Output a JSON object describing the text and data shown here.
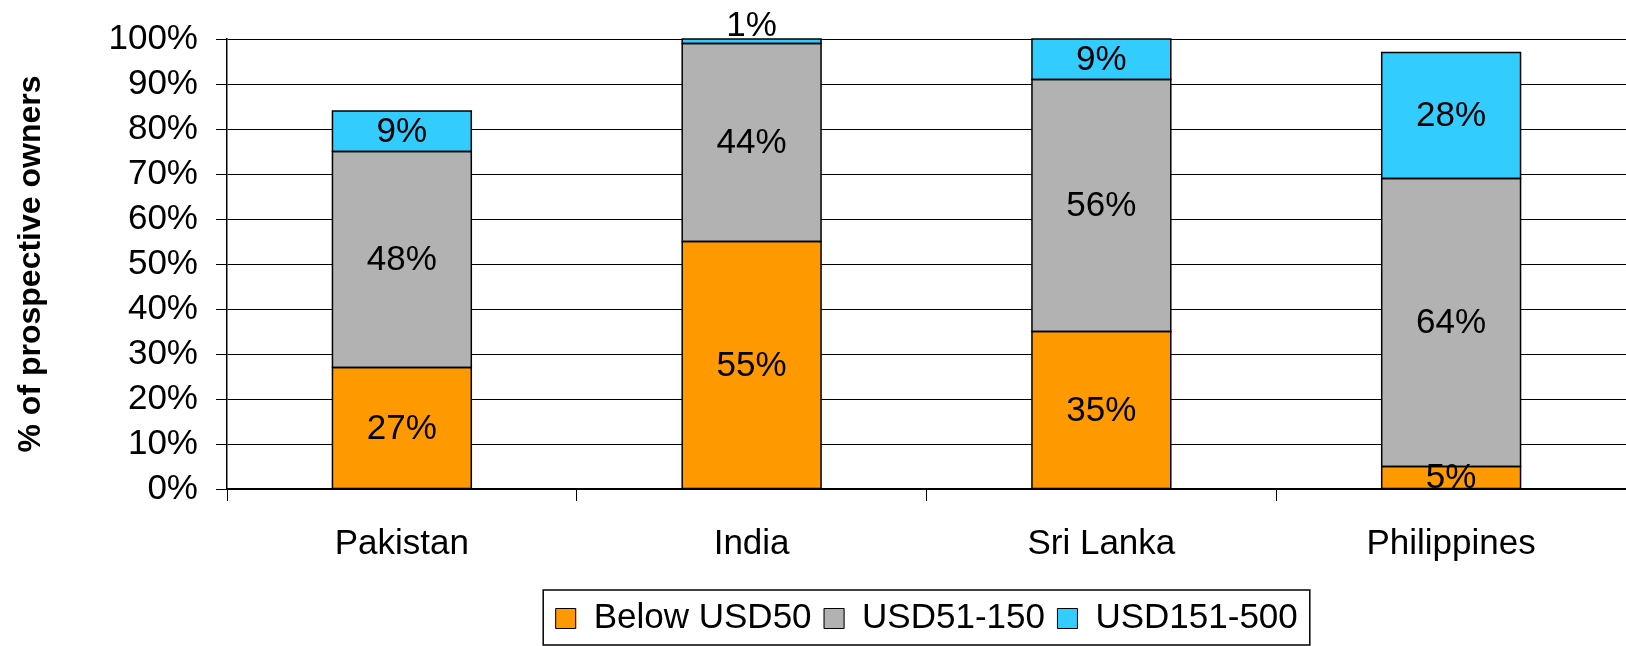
{
  "chart_data": {
    "type": "bar",
    "stacked": true,
    "categories": [
      "Pakistan",
      "India",
      "Sri Lanka",
      "Philippines"
    ],
    "ylabel": "% of prospective owners",
    "ylim": [
      0,
      100
    ],
    "yticks": [
      {
        "value": 0,
        "label": "0%"
      },
      {
        "value": 10,
        "label": "10%"
      },
      {
        "value": 20,
        "label": "20%"
      },
      {
        "value": 30,
        "label": "30%"
      },
      {
        "value": 40,
        "label": "40%"
      },
      {
        "value": 50,
        "label": "50%"
      },
      {
        "value": 60,
        "label": "60%"
      },
      {
        "value": 70,
        "label": "70%"
      },
      {
        "value": 80,
        "label": "80%"
      },
      {
        "value": 90,
        "label": "90%"
      },
      {
        "value": 100,
        "label": "100%"
      }
    ],
    "grid": "y",
    "legend": "bottom",
    "series": [
      {
        "name": "Below USD50",
        "color": "#ff9900",
        "values": [
          27,
          55,
          35,
          5
        ],
        "value_labels": [
          "27%",
          "55%",
          "35%",
          "5%"
        ]
      },
      {
        "name": "USD51-150",
        "color": "#b2b2b2",
        "values": [
          48,
          44,
          56,
          64
        ],
        "value_labels": [
          "48%",
          "44%",
          "56%",
          "64%"
        ]
      },
      {
        "name": "USD151-500",
        "color": "#33ccff",
        "values": [
          9,
          1,
          9,
          28
        ],
        "value_labels": [
          "9%",
          "1%",
          "9%",
          "28%"
        ]
      }
    ]
  }
}
